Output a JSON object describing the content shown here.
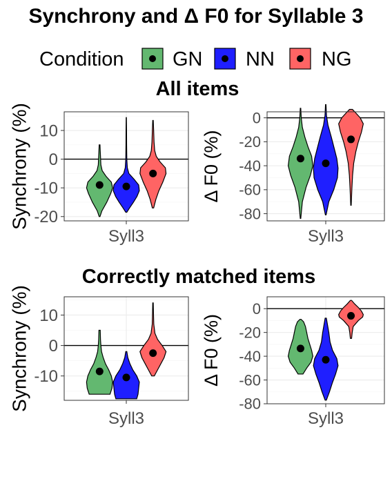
{
  "title": "Synchrony and Δ F0 for Syllable 3",
  "legend": {
    "title": "Condition",
    "entries": [
      {
        "label": "GN",
        "color": "#63b870"
      },
      {
        "label": "NN",
        "color": "#1f1fff"
      },
      {
        "label": "NG",
        "color": "#ff6464"
      }
    ]
  },
  "section_titles": {
    "top": "All items",
    "bottom": "Correctly matched items"
  },
  "chart_data": [
    {
      "type": "violin",
      "section": "All items",
      "xlabel": "Syll3",
      "ylabel": "Synchrony (%)",
      "ylim": [
        -21.5,
        16.5
      ],
      "yticks": [
        -20,
        -10,
        0,
        10
      ],
      "categories": [
        "GN",
        "NN",
        "NG"
      ],
      "hline": 0,
      "series": [
        {
          "name": "GN",
          "min": -20,
          "max": 5,
          "mean": -9,
          "density": [
            [
              -20,
              0.03
            ],
            [
              -18,
              0.18
            ],
            [
              -15,
              0.55
            ],
            [
              -12,
              0.85
            ],
            [
              -10,
              1.0
            ],
            [
              -8,
              0.9
            ],
            [
              -6,
              0.5
            ],
            [
              -4,
              0.2
            ],
            [
              -2,
              0.1
            ],
            [
              0,
              0.08
            ],
            [
              2,
              0.06
            ],
            [
              5,
              0.03
            ]
          ]
        },
        {
          "name": "NN",
          "min": -18.5,
          "max": 14.5,
          "mean": -9.5,
          "density": [
            [
              -18.5,
              0.04
            ],
            [
              -17,
              0.25
            ],
            [
              -15,
              0.55
            ],
            [
              -13,
              0.82
            ],
            [
              -11,
              1.0
            ],
            [
              -9,
              0.95
            ],
            [
              -7,
              0.6
            ],
            [
              -5,
              0.2
            ],
            [
              -3,
              0.08
            ],
            [
              0,
              0.04
            ],
            [
              5,
              0.025
            ],
            [
              10,
              0.02
            ],
            [
              14.5,
              0.01
            ]
          ]
        },
        {
          "name": "NG",
          "min": -17,
          "max": 13.5,
          "mean": -5,
          "density": [
            [
              -17,
              0.05
            ],
            [
              -14,
              0.22
            ],
            [
              -11,
              0.45
            ],
            [
              -8,
              0.75
            ],
            [
              -5,
              1.0
            ],
            [
              -3,
              0.95
            ],
            [
              -1,
              0.55
            ],
            [
              1,
              0.25
            ],
            [
              3,
              0.13
            ],
            [
              6,
              0.08
            ],
            [
              10,
              0.05
            ],
            [
              13.5,
              0.02
            ]
          ]
        }
      ]
    },
    {
      "type": "violin",
      "section": "All items",
      "xlabel": "Syll3",
      "ylabel": "Δ F0 (%)",
      "ylim": [
        -86,
        5
      ],
      "yticks": [
        -80,
        -60,
        -40,
        -20,
        0
      ],
      "categories": [
        "GN",
        "NN",
        "NG"
      ],
      "hline": 0,
      "series": [
        {
          "name": "GN",
          "min": -84,
          "max": 8,
          "mean": -34,
          "density": [
            [
              -84,
              0.02
            ],
            [
              -70,
              0.15
            ],
            [
              -58,
              0.45
            ],
            [
              -48,
              0.8
            ],
            [
              -40,
              1.0
            ],
            [
              -32,
              0.9
            ],
            [
              -24,
              0.6
            ],
            [
              -16,
              0.35
            ],
            [
              -8,
              0.15
            ],
            [
              0,
              0.06
            ],
            [
              8,
              0.02
            ]
          ]
        },
        {
          "name": "NN",
          "min": -81,
          "max": 11,
          "mean": -38,
          "density": [
            [
              -81,
              0.03
            ],
            [
              -70,
              0.25
            ],
            [
              -60,
              0.65
            ],
            [
              -50,
              0.95
            ],
            [
              -42,
              1.0
            ],
            [
              -34,
              0.9
            ],
            [
              -26,
              0.7
            ],
            [
              -16,
              0.45
            ],
            [
              -6,
              0.18
            ],
            [
              2,
              0.06
            ],
            [
              11,
              0.02
            ]
          ]
        },
        {
          "name": "NG",
          "min": -73,
          "max": 7,
          "mean": -18,
          "density": [
            [
              -73,
              0.02
            ],
            [
              -60,
              0.07
            ],
            [
              -48,
              0.13
            ],
            [
              -38,
              0.22
            ],
            [
              -28,
              0.4
            ],
            [
              -20,
              0.6
            ],
            [
              -12,
              0.85
            ],
            [
              -5,
              1.0
            ],
            [
              0,
              0.75
            ],
            [
              4,
              0.4
            ],
            [
              7,
              0.12
            ]
          ]
        }
      ]
    },
    {
      "type": "violin",
      "section": "Correctly matched items",
      "xlabel": "Syll3",
      "ylabel": "Synchrony (%)",
      "ylim": [
        -18,
        16
      ],
      "yticks": [
        -10,
        0,
        10
      ],
      "categories": [
        "GN",
        "NN",
        "NG"
      ],
      "hline": 0,
      "series": [
        {
          "name": "GN",
          "min": -16,
          "max": 5,
          "mean": -8.5,
          "density": [
            [
              -16,
              0.8
            ],
            [
              -14,
              0.95
            ],
            [
              -12,
              1.0
            ],
            [
              -10,
              0.9
            ],
            [
              -8,
              0.7
            ],
            [
              -6,
              0.45
            ],
            [
              -4,
              0.28
            ],
            [
              -2,
              0.15
            ],
            [
              0,
              0.1
            ],
            [
              2,
              0.07
            ],
            [
              5,
              0.05
            ]
          ]
        },
        {
          "name": "NN",
          "min": -17.5,
          "max": -2,
          "mean": -10.5,
          "density": [
            [
              -17.5,
              0.8
            ],
            [
              -16,
              0.9
            ],
            [
              -14,
              0.95
            ],
            [
              -12,
              1.0
            ],
            [
              -10,
              0.8
            ],
            [
              -8,
              0.5
            ],
            [
              -6,
              0.28
            ],
            [
              -4,
              0.12
            ],
            [
              -2,
              0.04
            ]
          ]
        },
        {
          "name": "NG",
          "min": -10,
          "max": 14,
          "mean": -2.5,
          "density": [
            [
              -10,
              0.1
            ],
            [
              -8,
              0.35
            ],
            [
              -6,
              0.6
            ],
            [
              -4,
              0.85
            ],
            [
              -2,
              1.0
            ],
            [
              0,
              0.7
            ],
            [
              2,
              0.35
            ],
            [
              4,
              0.15
            ],
            [
              7,
              0.06
            ],
            [
              10,
              0.04
            ],
            [
              14,
              0.02
            ]
          ]
        }
      ]
    },
    {
      "type": "violin",
      "section": "Correctly matched items",
      "xlabel": "Syll3",
      "ylabel": "Δ F0 (%)",
      "ylim": [
        -80,
        10
      ],
      "yticks": [
        -80,
        -60,
        -40,
        -20,
        0
      ],
      "categories": [
        "GN",
        "NN",
        "NG"
      ],
      "hline": 0,
      "series": [
        {
          "name": "GN",
          "min": -55,
          "max": -9,
          "mean": -33.5,
          "density": [
            [
              -55,
              0.2
            ],
            [
              -50,
              0.5
            ],
            [
              -45,
              0.85
            ],
            [
              -40,
              1.0
            ],
            [
              -35,
              0.9
            ],
            [
              -30,
              0.75
            ],
            [
              -25,
              0.6
            ],
            [
              -20,
              0.5
            ],
            [
              -15,
              0.4
            ],
            [
              -11,
              0.25
            ],
            [
              -9,
              0.05
            ]
          ]
        },
        {
          "name": "NN",
          "min": -77,
          "max": -8,
          "mean": -43,
          "density": [
            [
              -77,
              0.05
            ],
            [
              -70,
              0.3
            ],
            [
              -62,
              0.55
            ],
            [
              -55,
              0.8
            ],
            [
              -48,
              1.0
            ],
            [
              -42,
              0.9
            ],
            [
              -35,
              0.55
            ],
            [
              -28,
              0.35
            ],
            [
              -20,
              0.25
            ],
            [
              -14,
              0.15
            ],
            [
              -8,
              0.05
            ]
          ]
        },
        {
          "name": "NG",
          "min": -25,
          "max": 7,
          "mean": -6,
          "density": [
            [
              -25,
              0.05
            ],
            [
              -20,
              0.1
            ],
            [
              -15,
              0.18
            ],
            [
              -10,
              0.6
            ],
            [
              -7,
              0.95
            ],
            [
              -5,
              1.0
            ],
            [
              -2,
              0.85
            ],
            [
              1,
              0.6
            ],
            [
              4,
              0.3
            ],
            [
              7,
              0.05
            ]
          ]
        }
      ]
    }
  ]
}
